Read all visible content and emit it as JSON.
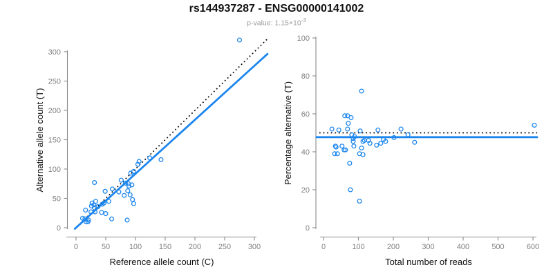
{
  "header": {
    "title": "rs144937287 - ENSG00000141002",
    "subtitle": "p-value: 1.15×10",
    "subtitle_exp": "-3"
  },
  "colors": {
    "point_blue": "#1C86EE",
    "line_blue": "#1C86EE",
    "dotted_black": "#000000",
    "axis_gray": "#8a8a8a",
    "tick_label_gray": "#7f7f7f",
    "subtitle_gray": "#9a9a9a"
  },
  "chart_data": [
    {
      "name": "allele-counts",
      "type": "scatter",
      "xlabel": "Reference allele count (C)",
      "ylabel": "Alternative allele count (T)",
      "xlim": [
        0,
        300
      ],
      "ylim": [
        0,
        300
      ],
      "xticks": [
        0,
        50,
        100,
        150,
        200,
        250,
        300
      ],
      "yticks": [
        0,
        50,
        100,
        150,
        200,
        250,
        300
      ],
      "grid": false,
      "legend": "none",
      "points": [
        [
          11,
          16
        ],
        [
          15,
          15
        ],
        [
          17,
          10
        ],
        [
          20,
          10
        ],
        [
          21,
          13
        ],
        [
          16,
          30
        ],
        [
          25,
          27
        ],
        [
          32,
          27
        ],
        [
          43,
          26
        ],
        [
          26,
          37
        ],
        [
          30,
          39
        ],
        [
          31,
          34
        ],
        [
          37,
          36
        ],
        [
          33,
          45
        ],
        [
          27,
          42
        ],
        [
          44,
          40
        ],
        [
          47,
          42
        ],
        [
          55,
          45
        ],
        [
          49,
          62
        ],
        [
          31,
          77
        ],
        [
          50,
          24
        ],
        [
          60,
          15
        ],
        [
          86,
          13
        ],
        [
          61,
          66
        ],
        [
          72,
          61
        ],
        [
          76,
          81
        ],
        [
          83,
          76
        ],
        [
          88,
          75
        ],
        [
          89,
          71
        ],
        [
          94,
          73
        ],
        [
          87,
          63
        ],
        [
          81,
          55
        ],
        [
          91,
          56
        ],
        [
          95,
          48
        ],
        [
          97,
          41
        ],
        [
          92,
          93
        ],
        [
          97,
          96
        ],
        [
          104,
          108
        ],
        [
          106,
          113
        ],
        [
          124,
          119
        ],
        [
          143,
          116
        ],
        [
          275,
          320
        ]
      ],
      "lines": [
        {
          "name": "identity-line",
          "type": "slope",
          "slope": 1,
          "intercept": 0,
          "x_range": [
            0,
            321
          ],
          "style": "dotted",
          "color": "#000000"
        },
        {
          "name": "fit-line",
          "type": "slope",
          "slope": 0.92,
          "intercept": 0,
          "x_range": [
            -2,
            322
          ],
          "style": "solid",
          "color": "#1C86EE"
        }
      ]
    },
    {
      "name": "percentage-alternative",
      "type": "scatter",
      "xlabel": "Total number of reads",
      "ylabel": "Percentage alternative (T)",
      "xlim": [
        0,
        600
      ],
      "ylim": [
        0,
        100
      ],
      "xticks": [
        0,
        100,
        200,
        300,
        400,
        500,
        600
      ],
      "yticks": [
        0,
        20,
        40,
        60,
        80,
        100
      ],
      "grid": false,
      "legend": "none",
      "points": [
        [
          24,
          52
        ],
        [
          44,
          51.5
        ],
        [
          61,
          59
        ],
        [
          69,
          59
        ],
        [
          79,
          58
        ],
        [
          71,
          55
        ],
        [
          109,
          72
        ],
        [
          69,
          52
        ],
        [
          105,
          51
        ],
        [
          156,
          51.5
        ],
        [
          222,
          52
        ],
        [
          34,
          43
        ],
        [
          32,
          39
        ],
        [
          36,
          42.5
        ],
        [
          40,
          39
        ],
        [
          53,
          43
        ],
        [
          59,
          41
        ],
        [
          63,
          41
        ],
        [
          75,
          34
        ],
        [
          77,
          20
        ],
        [
          103,
          14
        ],
        [
          81,
          49
        ],
        [
          89,
          48
        ],
        [
          85,
          47
        ],
        [
          85,
          45.5
        ],
        [
          87,
          43
        ],
        [
          103,
          39
        ],
        [
          109,
          42
        ],
        [
          113,
          45.5
        ],
        [
          113,
          38.5
        ],
        [
          117,
          46
        ],
        [
          129,
          46
        ],
        [
          133,
          44.5
        ],
        [
          152,
          43.5
        ],
        [
          164,
          44.5
        ],
        [
          172,
          46.5
        ],
        [
          178,
          45.5
        ],
        [
          202,
          47.5
        ],
        [
          242,
          49
        ],
        [
          261,
          45
        ],
        [
          604,
          54
        ]
      ],
      "lines": [
        {
          "name": "expected-line",
          "type": "hline",
          "y": 50,
          "x_range": [
            -12,
            612
          ],
          "style": "dotted",
          "color": "#000000"
        },
        {
          "name": "fit-line",
          "type": "hline",
          "y": 47.7,
          "x_range": [
            -20,
            612
          ],
          "style": "solid",
          "color": "#1C86EE"
        }
      ]
    }
  ]
}
